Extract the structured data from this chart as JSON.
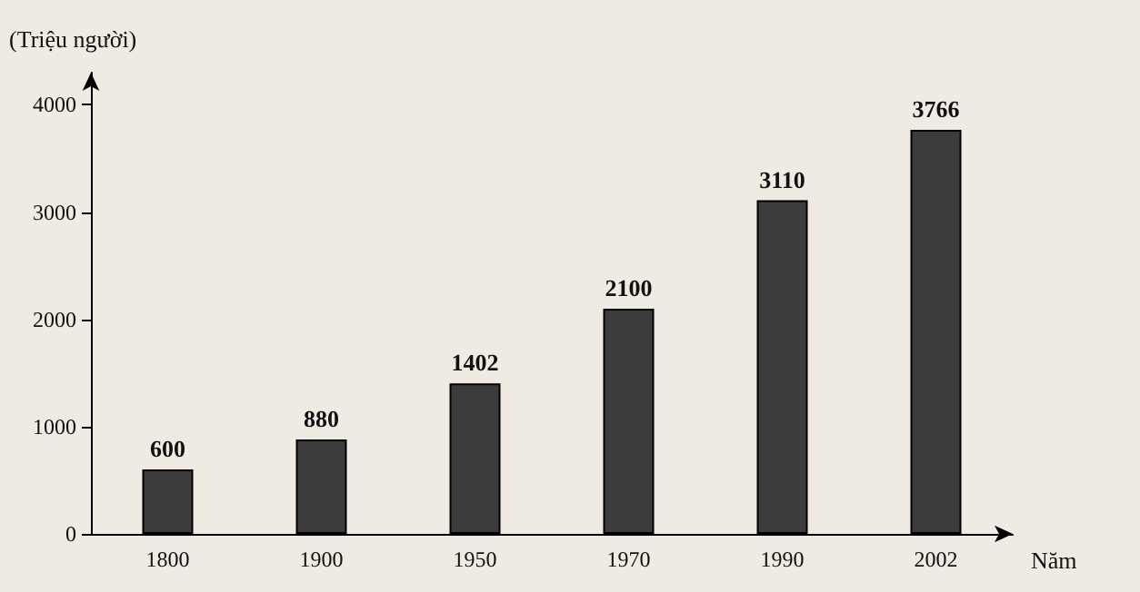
{
  "chart_data": {
    "type": "bar",
    "ylabel": "(Triệu người)",
    "xlabel": "Năm",
    "categories": [
      "1800",
      "1900",
      "1950",
      "1970",
      "1990",
      "2002"
    ],
    "values": [
      600,
      880,
      1402,
      2100,
      3110,
      3766
    ],
    "color": "#3c3c3c",
    "ylim": [
      0,
      4300
    ],
    "yticks": [
      0,
      1000,
      2000,
      3000,
      4000
    ],
    "grid": false,
    "data_labels": true
  }
}
